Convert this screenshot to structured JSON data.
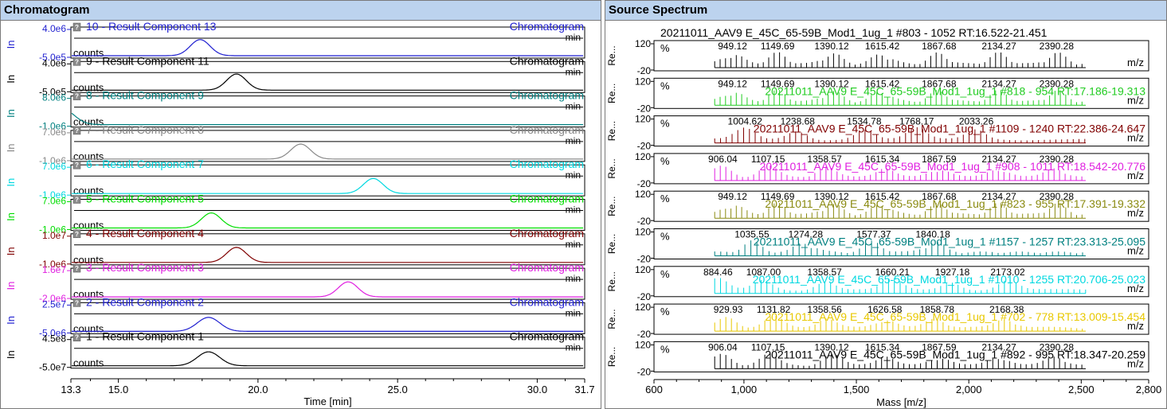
{
  "panels": {
    "left_title": "Chromatogram",
    "right_title": "Source Spectrum"
  },
  "colors": {
    "header_bg": "#bcd3ee",
    "c10": "#1f1fd0",
    "c9": "#000000",
    "c8": "#008080",
    "c7": "#888888",
    "c6": "#00d8e0",
    "c5": "#00dd00",
    "c4": "#800000",
    "c3": "#e020e0",
    "c2": "#1f1fd0",
    "c1": "#000000"
  },
  "chart_data": [
    {
      "type": "line",
      "title": "Chromatogram",
      "xlabel": "Time [min]",
      "xlim": [
        13.3,
        31.7
      ],
      "xticks": [
        "13.3",
        "15.0",
        "20.0",
        "25.0",
        "30.0",
        "31.7"
      ],
      "xtick_values": [
        13.3,
        15.0,
        20.0,
        25.0,
        30.0,
        31.7
      ],
      "unit_label": "min",
      "y_unit": "counts",
      "y_side_label": "In",
      "series": [
        {
          "name": "10 - Result Component 13",
          "tag": "Chromatogram",
          "color": "#1f1fd0",
          "ymax_label": "4.0e6",
          "ymin_label": "-5.0e5",
          "peak_time": 17.9,
          "peak_width": 0.35,
          "peak_level": 0.75
        },
        {
          "name": "9 - Result Component 11",
          "tag": "Chromatogram",
          "color": "#000000",
          "ymax_label": "4.0e6",
          "ymin_label": "-5.0e5",
          "peak_time": 19.2,
          "peak_width": 0.35,
          "peak_level": 0.75
        },
        {
          "name": "8 - Result Component 9",
          "tag": "Chromatogram",
          "color": "#008080",
          "ymax_label": "8.0e6",
          "ymin_label": "-1.0e6",
          "peak_time": 13.0,
          "peak_width": 0.4,
          "peak_level": 0.7
        },
        {
          "name": "7 - Result Component 8",
          "tag": "Chromatogram",
          "color": "#888888",
          "ymax_label": "7.0e6",
          "ymin_label": "-1.0e6",
          "peak_time": 21.5,
          "peak_width": 0.35,
          "peak_level": 0.7
        },
        {
          "name": "6 - Result Component 7",
          "tag": "Chromatogram",
          "color": "#00d8e0",
          "ymax_label": "7.0e6",
          "ymin_label": "-1.0e6",
          "peak_time": 24.1,
          "peak_width": 0.35,
          "peak_level": 0.7
        },
        {
          "name": "5 - Result Component 5",
          "tag": "Chromatogram",
          "color": "#00dd00",
          "ymax_label": "7.0e6",
          "ymin_label": "-1.0e6",
          "peak_time": 18.3,
          "peak_width": 0.35,
          "peak_level": 0.7
        },
        {
          "name": "4 - Result Component 4",
          "tag": "Chromatogram",
          "color": "#800000",
          "ymax_label": "1.0e7",
          "ymin_label": "-1.0e6",
          "peak_time": 19.2,
          "peak_width": 0.35,
          "peak_level": 0.7
        },
        {
          "name": "3 - Result Component 3",
          "tag": "Chromatogram",
          "color": "#e020e0",
          "ymax_label": "1.6e7",
          "ymin_label": "-2.0e6",
          "peak_time": 23.2,
          "peak_width": 0.35,
          "peak_level": 0.7
        },
        {
          "name": "2 - Result Component 2",
          "tag": "Chromatogram",
          "color": "#1f1fd0",
          "ymax_label": "2.5e7",
          "ymin_label": "-5.0e6",
          "peak_time": 18.2,
          "peak_width": 0.4,
          "peak_level": 0.65
        },
        {
          "name": "1 - Result Component 1",
          "tag": "Chromatogram",
          "color": "#000000",
          "ymax_label": "4.5e8",
          "ymin_label": "-5.0e7",
          "peak_time": 18.2,
          "peak_width": 0.4,
          "peak_level": 0.65
        }
      ]
    },
    {
      "type": "bar",
      "title": "Source Spectrum",
      "xlabel": "Mass [m/z]",
      "xlim": [
        600,
        2800
      ],
      "xticks": [
        "600",
        "1,000",
        "1,500",
        "2,000",
        "2,500",
        "2,800"
      ],
      "xtick_values": [
        600,
        1000,
        1500,
        2000,
        2500,
        2800
      ],
      "unit_label": "m/z",
      "y_unit": "%",
      "y_side_label": "Re...",
      "ymax_label": "120",
      "ymin_label": "-20",
      "series": [
        {
          "label": "20211011_AAV9 E_45C_65-59B_Mod1_1ug_1 #803 - 1052 RT:16.522-21.451",
          "color": "#000000",
          "label_outside": true,
          "peaks": [
            949.12,
            1149.69,
            1390.12,
            1615.42,
            1867.68,
            2134.27,
            2390.28
          ],
          "peak_labels": [
            "949.12",
            "1149.69",
            "1390.12",
            "1615.42",
            "1867.68",
            "2134.27",
            "2390.28"
          ]
        },
        {
          "label": "20211011_AAV9 E_45C_65-59B_Mod1_1ug_1 #818 - 954 RT:17.186-19.313",
          "color": "#22cc22",
          "peaks": [
            949.12,
            1149.69,
            1390.12,
            1615.42,
            1867.68,
            2134.27,
            2390.28
          ],
          "peak_labels": [
            "949.12",
            "1149.69",
            "1390.12",
            "1615.42",
            "1867.68",
            "2134.27",
            "2390.28"
          ]
        },
        {
          "label": "20211011_AAV9 E_45C_65-59B_Mod1_1ug_1 #1109 - 1240 RT:22.386-24.647",
          "color": "#800000",
          "peaks": [
            1004.62,
            1238.68,
            1534.78,
            1768.17,
            2033.26
          ],
          "peak_labels": [
            "1004.62",
            "1238.68",
            "1534.78",
            "1768.17",
            "2033.26"
          ]
        },
        {
          "label": "20211011_AAV9 E_45C_65-59B_Mod1_1ug_1 #908 - 1011 RT:18.542-20.776",
          "color": "#e020e0",
          "peaks": [
            906.04,
            1107.15,
            1358.57,
            1615.34,
            1867.59,
            2134.27,
            2390.28
          ],
          "peak_labels": [
            "906.04",
            "1107.15",
            "1358.57",
            "1615.34",
            "1867.59",
            "2134.27",
            "2390.28"
          ]
        },
        {
          "label": "20211011_AAV9 E_45C_65-59B_Mod1_1ug_1 #823 - 955 RT:17.391-19.332",
          "color": "#8a8a10",
          "peaks": [
            949.12,
            1149.69,
            1390.12,
            1615.42,
            1867.68,
            2134.27,
            2390.28
          ],
          "peak_labels": [
            "949.12",
            "1149.69",
            "1390.12",
            "1615.42",
            "1867.68",
            "2134.27",
            "2390.28"
          ]
        },
        {
          "label": "20211011_AAV9 E_45C_65-59B_Mod1_1ug_1 #1157 - 1257 RT:23.313-25.095",
          "color": "#008080",
          "peaks": [
            1035.55,
            1274.28,
            1577.37,
            1840.18
          ],
          "peak_labels": [
            "1035.55",
            "1274.28",
            "1577.37",
            "1840.18"
          ]
        },
        {
          "label": "20211011_AAV9 E_45C_65-59B_Mod1_1ug_1 #1010 - 1255 RT:20.706-25.023",
          "color": "#00d8e0",
          "peaks": [
            884.46,
            1087.0,
            1358.57,
            1660.21,
            1927.18,
            2173.02
          ],
          "peak_labels": [
            "884.46",
            "1087.00",
            "1358.57",
            "1660.21",
            "1927.18",
            "2173.02"
          ]
        },
        {
          "label": "20211011_AAV9 E_45C_65-59B_Mod1_1ug_1 #702 - 778 RT:13.009-15.454",
          "color": "#e8c800",
          "peaks": [
            929.93,
            1131.82,
            1358.56,
            1626.58,
            1858.78,
            2168.38
          ],
          "peak_labels": [
            "929.93",
            "1131.82",
            "1358.56",
            "1626.58",
            "1858.78",
            "2168.38"
          ]
        },
        {
          "label": "20211011_AAV9 E_45C_65-59B_Mod1_1ug_1 #892 - 995 RT:18.347-20.259",
          "color": "#000000",
          "peaks": [
            906.04,
            1107.15,
            1390.12,
            1615.34,
            1867.59,
            2134.27,
            2390.28
          ],
          "peak_labels": [
            "906.04",
            "1107.15",
            "1390.12",
            "1615.34",
            "1867.59",
            "2134.27",
            "2390.28"
          ]
        }
      ]
    }
  ]
}
